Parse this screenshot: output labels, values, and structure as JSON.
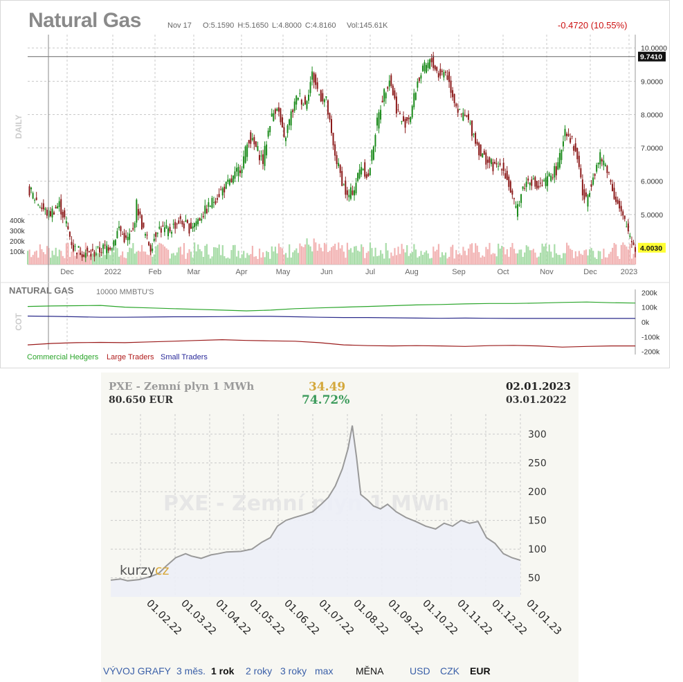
{
  "top_chart": {
    "title": "Natural Gas",
    "date": "Nov 17",
    "ohlc": "O:5.1590  H:5.1650  L:4.8000  C:4.8160",
    "volume": "Vol:145.61K",
    "change": "-0.4720 (10.55%)",
    "period_label": "DAILY",
    "cot_label": "COT",
    "cot_title": "NATURAL GAS",
    "cot_unit": "10000 MMBTU'S",
    "current_price_label": "4.0030",
    "crosshair_price_label": "9.7410",
    "colors": {
      "up": "#1a8a1a",
      "down": "#8b1a1a",
      "vol_up": "#a8dca8",
      "vol_down": "#f2b4b4",
      "price_tag": "#ffff33"
    }
  },
  "bottom_chart": {
    "title": "PXE - Zemní plyn 1 MWh",
    "watermark": "PXE - Zemní plyn 1 MWh",
    "change_abs": "34.49",
    "change_pct": "74.72%",
    "price": "80.650 EUR",
    "date_end": "02.01.2023",
    "date_start": "03.01.2022",
    "logo_text": "kurzy",
    "logo_suffix": "cz",
    "nav": {
      "label": "VÝVOJ GRAFY",
      "periods": [
        "3 měs.",
        "1 rok",
        "2 roky",
        "3 roky",
        "max"
      ],
      "active_period": "1 rok",
      "currency_label": "MĚNA",
      "currencies": [
        "USD",
        "CZK",
        "EUR"
      ],
      "active_currency": "EUR"
    },
    "colors": {
      "line": "#999999",
      "fill": "#eceef7",
      "up_text": "#3a9a5a",
      "abs_text": "#d4a83c"
    }
  },
  "chart_data": [
    {
      "type": "candlestick",
      "title": "Natural Gas",
      "y_ticks": [
        "10.0000",
        "9.0000",
        "8.0000",
        "7.0000",
        "6.0000",
        "5.0000"
      ],
      "ylim": [
        3.5,
        10.4
      ],
      "x_ticks": [
        "Dec",
        "2022",
        "Feb",
        "Mar",
        "Apr",
        "May",
        "Jun",
        "Jul",
        "Aug",
        "Sep",
        "Oct",
        "Nov",
        "Dec",
        "2023"
      ],
      "volume_ticks": [
        "400k",
        "300k",
        "200k",
        "100k"
      ],
      "close_path": [
        [
          0,
          5.8
        ],
        [
          8,
          5.2
        ],
        [
          12,
          5.0
        ],
        [
          18,
          5.3
        ],
        [
          22,
          4.7
        ],
        [
          26,
          4.0
        ],
        [
          30,
          3.9
        ],
        [
          36,
          3.8
        ],
        [
          42,
          3.95
        ],
        [
          48,
          4.1
        ],
        [
          52,
          4.6
        ],
        [
          56,
          4.2
        ],
        [
          60,
          4.5
        ],
        [
          62,
          5.3
        ],
        [
          66,
          4.5
        ],
        [
          70,
          4.0
        ],
        [
          74,
          4.6
        ],
        [
          80,
          4.5
        ],
        [
          86,
          4.8
        ],
        [
          92,
          4.6
        ],
        [
          98,
          4.9
        ],
        [
          104,
          5.3
        ],
        [
          110,
          5.7
        ],
        [
          116,
          6.0
        ],
        [
          122,
          6.5
        ],
        [
          126,
          7.3
        ],
        [
          130,
          7.0
        ],
        [
          134,
          6.6
        ],
        [
          138,
          7.8
        ],
        [
          142,
          8.3
        ],
        [
          146,
          7.2
        ],
        [
          150,
          8.0
        ],
        [
          154,
          8.6
        ],
        [
          158,
          8.3
        ],
        [
          162,
          9.2
        ],
        [
          166,
          8.6
        ],
        [
          170,
          8.4
        ],
        [
          174,
          7.0
        ],
        [
          178,
          6.2
        ],
        [
          182,
          5.5
        ],
        [
          186,
          5.8
        ],
        [
          190,
          6.5
        ],
        [
          194,
          6.1
        ],
        [
          198,
          7.5
        ],
        [
          202,
          8.5
        ],
        [
          206,
          9.1
        ],
        [
          210,
          8.2
        ],
        [
          214,
          7.7
        ],
        [
          218,
          8.0
        ],
        [
          222,
          9.0
        ],
        [
          226,
          9.4
        ],
        [
          230,
          9.6
        ],
        [
          234,
          9.2
        ],
        [
          238,
          9.3
        ],
        [
          242,
          8.6
        ],
        [
          246,
          8.0
        ],
        [
          250,
          7.9
        ],
        [
          254,
          7.4
        ],
        [
          258,
          6.8
        ],
        [
          262,
          6.6
        ],
        [
          266,
          6.4
        ],
        [
          270,
          6.5
        ],
        [
          274,
          5.9
        ],
        [
          278,
          5.1
        ],
        [
          282,
          5.8
        ],
        [
          286,
          6.1
        ],
        [
          290,
          5.8
        ],
        [
          294,
          5.9
        ],
        [
          298,
          6.2
        ],
        [
          302,
          6.4
        ],
        [
          306,
          7.6
        ],
        [
          310,
          7.2
        ],
        [
          314,
          6.5
        ],
        [
          316,
          5.6
        ],
        [
          318,
          5.4
        ],
        [
          322,
          6.2
        ],
        [
          326,
          6.7
        ],
        [
          330,
          6.4
        ],
        [
          334,
          5.6
        ],
        [
          338,
          5.0
        ],
        [
          342,
          4.5
        ],
        [
          346,
          4.0
        ]
      ],
      "cot_ticks": [
        "200k",
        "100k",
        "0k",
        "-100k",
        "-200k"
      ],
      "cot_ylim": [
        -220,
        220
      ],
      "cot_series": [
        {
          "name": "Commercial Hedgers",
          "color": "#2aa52a",
          "values": [
            105,
            108,
            110,
            112,
            100,
            95,
            90,
            85,
            80,
            75,
            80,
            90,
            95,
            100,
            105,
            110,
            115,
            118,
            122,
            125,
            125,
            128,
            132,
            135,
            130,
            128
          ]
        },
        {
          "name": "Large Traders",
          "color": "#9a1a1a",
          "values": [
            -155,
            -145,
            -140,
            -138,
            -140,
            -135,
            -130,
            -125,
            -120,
            -125,
            -128,
            -130,
            -140,
            -155,
            -160,
            -162,
            -160,
            -162,
            -165,
            -160,
            -158,
            -162,
            -170,
            -165,
            -162,
            -162
          ]
        },
        {
          "name": "Small Traders",
          "color": "#2a2a8a",
          "values": [
            40,
            38,
            35,
            32,
            32,
            33,
            35,
            35,
            36,
            38,
            38,
            35,
            32,
            30,
            30,
            28,
            26,
            25,
            26,
            25,
            24,
            24,
            24,
            24,
            24,
            24
          ]
        }
      ]
    },
    {
      "type": "area",
      "title": "PXE - Zemní plyn 1 MWh",
      "x_ticks": [
        "01.02.22",
        "01.03.22",
        "01.04.22",
        "01.05.22",
        "01.06.22",
        "01.07.22",
        "01.08.22",
        "01.09.22",
        "01.10.22",
        "01.11.22",
        "01.12.22",
        "01.01.23"
      ],
      "y_ticks": [
        300,
        250,
        200,
        150,
        100,
        50
      ],
      "ylim": [
        17,
        335
      ],
      "x_range": [
        "03.01.2022",
        "02.01.2023"
      ],
      "series": [
        {
          "values": [
            [
              0,
              46
            ],
            [
              0.7,
              48
            ],
            [
              1.2,
              45
            ],
            [
              2,
              47
            ],
            [
              2.8,
              52
            ],
            [
              3.4,
              58
            ],
            [
              3.9,
              70
            ],
            [
              4.6,
              85
            ],
            [
              5.3,
              92
            ],
            [
              5.7,
              88
            ],
            [
              6.4,
              84
            ],
            [
              7.1,
              90
            ],
            [
              7.6,
              92
            ],
            [
              8.2,
              95
            ],
            [
              9.2,
              96
            ],
            [
              10,
              100
            ],
            [
              10.7,
              112
            ],
            [
              11.3,
              120
            ],
            [
              11.8,
              140
            ],
            [
              12.4,
              150
            ],
            [
              13.0,
              155
            ],
            [
              13.7,
              160
            ],
            [
              14.3,
              165
            ],
            [
              14.9,
              178
            ],
            [
              15.4,
              190
            ],
            [
              15.9,
              210
            ],
            [
              16.4,
              240
            ],
            [
              16.8,
              275
            ],
            [
              17.1,
              315
            ],
            [
              17.4,
              260
            ],
            [
              17.7,
              195
            ],
            [
              18.2,
              185
            ],
            [
              18.6,
              175
            ],
            [
              19.1,
              170
            ],
            [
              19.6,
              178
            ],
            [
              20.2,
              165
            ],
            [
              20.9,
              155
            ],
            [
              21.6,
              148
            ],
            [
              22.3,
              140
            ],
            [
              23.0,
              135
            ],
            [
              23.6,
              145
            ],
            [
              24.2,
              140
            ],
            [
              24.8,
              150
            ],
            [
              25.4,
              145
            ],
            [
              26.0,
              148
            ],
            [
              26.6,
              120
            ],
            [
              27.2,
              110
            ],
            [
              27.8,
              92
            ],
            [
              28.4,
              85
            ],
            [
              29.0,
              80.65
            ]
          ]
        }
      ]
    }
  ]
}
